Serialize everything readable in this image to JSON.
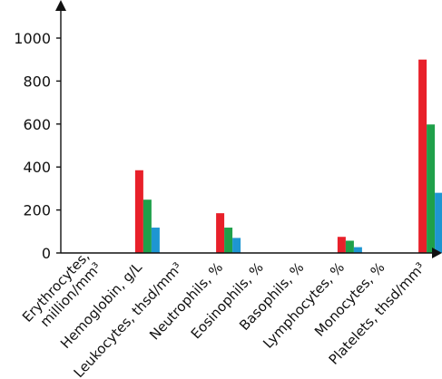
{
  "chart_data": {
    "type": "bar",
    "title": "",
    "xlabel": "",
    "ylabel": "",
    "ylim": [
      0,
      1000
    ],
    "y_ticks": [
      "0",
      "200",
      "400",
      "600",
      "800",
      "1000"
    ],
    "grid": false,
    "legend": "none",
    "categories": [
      [
        "Erythrocytes,",
        "million/mm³"
      ],
      [
        "Hemoglobin, g/L"
      ],
      [
        "Leukocytes, thsd/mm³"
      ],
      [
        "Neutrophils, %"
      ],
      [
        "Eosinophils, %"
      ],
      [
        "Basophils, %"
      ],
      [
        "Lymphocytes, %"
      ],
      [
        "Monocytes, %"
      ],
      [
        "Platelets, thsd/mm³"
      ]
    ],
    "series": [
      {
        "color": "#e8202a",
        "values": [
          0,
          385,
          0,
          185,
          0,
          0,
          75,
          0,
          900
        ]
      },
      {
        "color": "#1fa04a",
        "values": [
          0,
          248,
          0,
          118,
          0,
          0,
          57,
          0,
          598
        ]
      },
      {
        "color": "#1e96d2",
        "values": [
          0,
          118,
          0,
          70,
          0,
          0,
          27,
          0,
          280
        ]
      }
    ]
  }
}
